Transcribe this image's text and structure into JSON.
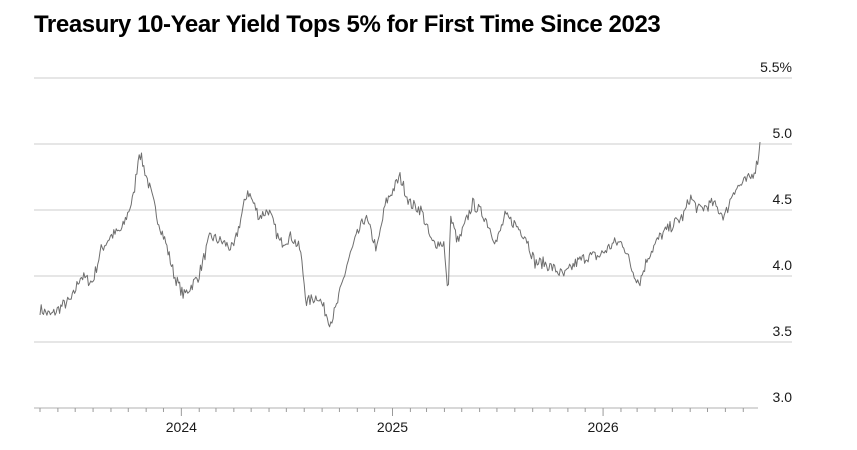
{
  "chart_data": {
    "type": "line",
    "title": "Treasury 10-Year Yield Tops 5% for First Time Since 2023",
    "xlabel": "",
    "ylabel": "",
    "x_range": [
      "2023-05-01",
      "2026-09-30"
    ],
    "ylim": [
      3.0,
      5.5
    ],
    "y_ticks": [
      {
        "value": 5.5,
        "label": "5.5%"
      },
      {
        "value": 5.0,
        "label": "5.0"
      },
      {
        "value": 4.5,
        "label": "4.5"
      },
      {
        "value": 4.0,
        "label": "4.0"
      },
      {
        "value": 3.5,
        "label": "3.5"
      },
      {
        "value": 3.0,
        "label": "3.0"
      }
    ],
    "x_ticks": [
      {
        "date": "2024-01-01",
        "label": "2024"
      },
      {
        "date": "2025-01-01",
        "label": "2025"
      },
      {
        "date": "2026-01-01",
        "label": "2026"
      }
    ],
    "grid": "horizontal",
    "legend": "none",
    "line_color": "#6e6e6e",
    "grid_color": "#cccccc",
    "series": [
      {
        "values": [
          [
            "2023-05-01",
            3.75
          ],
          [
            "2023-05-20",
            3.7
          ],
          [
            "2023-06-10",
            3.78
          ],
          [
            "2023-06-25",
            3.82
          ],
          [
            "2023-07-10",
            4.0
          ],
          [
            "2023-07-31",
            3.95
          ],
          [
            "2023-08-15",
            4.2
          ],
          [
            "2023-08-31",
            4.3
          ],
          [
            "2023-09-20",
            4.35
          ],
          [
            "2023-10-10",
            4.6
          ],
          [
            "2023-10-20",
            4.95
          ],
          [
            "2023-11-05",
            4.7
          ],
          [
            "2023-11-20",
            4.45
          ],
          [
            "2023-12-05",
            4.25
          ],
          [
            "2023-12-20",
            4.0
          ],
          [
            "2024-01-05",
            3.85
          ],
          [
            "2024-01-31",
            4.0
          ],
          [
            "2024-02-20",
            4.3
          ],
          [
            "2024-03-15",
            4.25
          ],
          [
            "2024-03-31",
            4.2
          ],
          [
            "2024-04-25",
            4.65
          ],
          [
            "2024-05-15",
            4.45
          ],
          [
            "2024-05-31",
            4.5
          ],
          [
            "2024-06-20",
            4.25
          ],
          [
            "2024-07-10",
            4.3
          ],
          [
            "2024-07-25",
            4.2
          ],
          [
            "2024-08-05",
            3.8
          ],
          [
            "2024-08-25",
            3.85
          ],
          [
            "2024-09-15",
            3.65
          ],
          [
            "2024-09-25",
            3.75
          ],
          [
            "2024-10-15",
            4.1
          ],
          [
            "2024-10-31",
            4.3
          ],
          [
            "2024-11-15",
            4.45
          ],
          [
            "2024-12-05",
            4.2
          ],
          [
            "2024-12-20",
            4.55
          ],
          [
            "2025-01-14",
            4.75
          ],
          [
            "2025-01-31",
            4.55
          ],
          [
            "2025-02-20",
            4.5
          ],
          [
            "2025-03-10",
            4.25
          ],
          [
            "2025-03-31",
            4.25
          ],
          [
            "2025-04-04",
            4.0
          ],
          [
            "2025-04-08",
            3.9
          ],
          [
            "2025-04-11",
            4.45
          ],
          [
            "2025-04-25",
            4.25
          ],
          [
            "2025-05-20",
            4.55
          ],
          [
            "2025-06-10",
            4.45
          ],
          [
            "2025-06-30",
            4.25
          ],
          [
            "2025-07-15",
            4.45
          ],
          [
            "2025-07-31",
            4.4
          ],
          [
            "2025-08-20",
            4.3
          ],
          [
            "2025-09-05",
            4.1
          ],
          [
            "2025-09-20",
            4.1
          ],
          [
            "2025-10-10",
            4.05
          ],
          [
            "2025-10-25",
            4.0
          ],
          [
            "2025-11-15",
            4.1
          ],
          [
            "2025-12-05",
            4.15
          ],
          [
            "2025-12-25",
            4.15
          ],
          [
            "2026-01-20",
            4.25
          ],
          [
            "2026-02-05",
            4.25
          ],
          [
            "2026-02-20",
            4.05
          ],
          [
            "2026-03-05",
            3.95
          ],
          [
            "2026-03-20",
            4.15
          ],
          [
            "2026-04-10",
            4.3
          ],
          [
            "2026-05-05",
            4.4
          ],
          [
            "2026-05-20",
            4.45
          ],
          [
            "2026-06-01",
            4.6
          ],
          [
            "2026-06-15",
            4.5
          ],
          [
            "2026-07-10",
            4.55
          ],
          [
            "2026-07-31",
            4.45
          ],
          [
            "2026-08-15",
            4.65
          ],
          [
            "2026-08-31",
            4.7
          ],
          [
            "2026-09-15",
            4.75
          ],
          [
            "2026-09-25",
            4.85
          ],
          [
            "2026-09-30",
            5.0
          ]
        ]
      }
    ]
  }
}
